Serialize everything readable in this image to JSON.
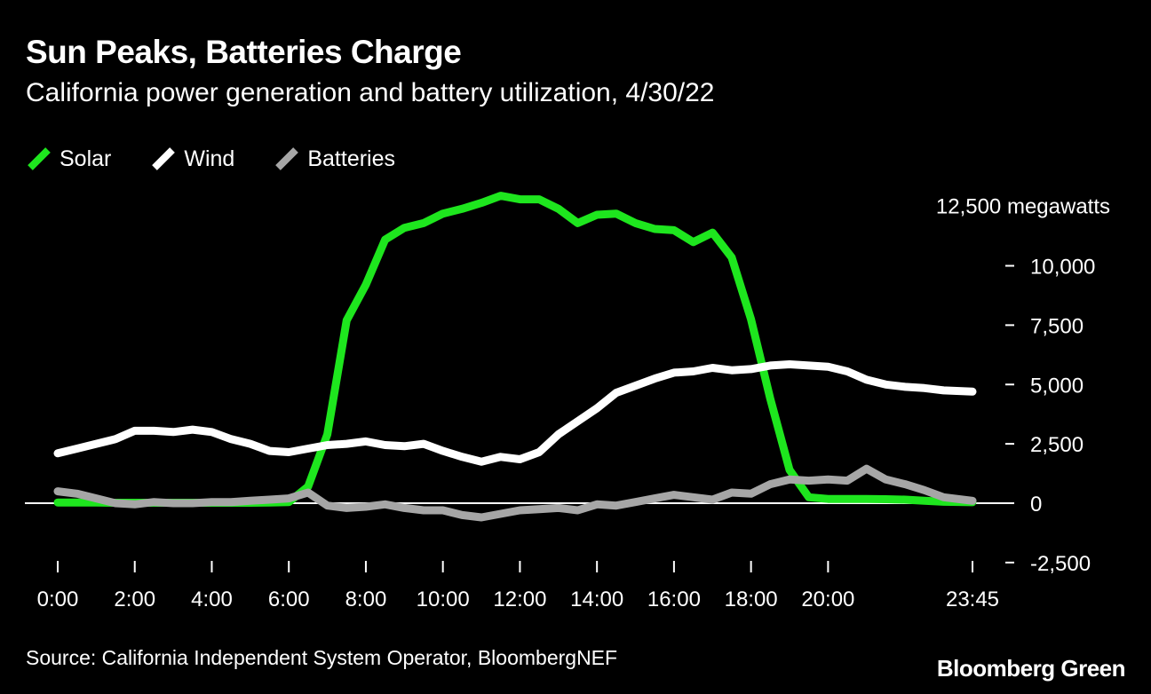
{
  "header": {
    "title": "Sun Peaks, Batteries Charge",
    "subtitle": "California power generation and battery utilization, 4/30/22"
  },
  "footer": {
    "source": "Source: California Independent System Operator, BloombergNEF",
    "brand": "Bloomberg Green"
  },
  "colors": {
    "background": "#000000",
    "solar": "#1ee61e",
    "wind": "#ffffff",
    "batteries": "#a6a6a6",
    "zero_line": "#ffffff"
  },
  "chart_data": {
    "type": "line",
    "title": "Sun Peaks, Batteries Charge",
    "subtitle": "California power generation and battery utilization, 4/30/22",
    "xlabel": "",
    "ylabel": "megawatts",
    "y_unit_label": "12,500 megawatts",
    "ylim": [
      -2500,
      12500
    ],
    "yticks": [
      -2500,
      0,
      2500,
      5000,
      7500,
      10000
    ],
    "ytick_labels": [
      "-2,500",
      "0",
      "2,500",
      "5,000",
      "7,500",
      "10,000"
    ],
    "xlim": [
      0,
      23.75
    ],
    "xticks": [
      0,
      2,
      4,
      6,
      8,
      10,
      12,
      14,
      16,
      18,
      20,
      23.75
    ],
    "xtick_labels": [
      "0:00",
      "2:00",
      "4:00",
      "6:00",
      "8:00",
      "10:00",
      "12:00",
      "14:00",
      "16:00",
      "18:00",
      "20:00",
      "23:45"
    ],
    "grid": false,
    "legend_position": "top-left",
    "x": [
      0,
      0.5,
      1,
      1.5,
      2,
      2.5,
      3,
      3.5,
      4,
      4.5,
      5,
      5.5,
      6,
      6.5,
      7,
      7.5,
      8,
      8.5,
      9,
      9.5,
      10,
      10.5,
      11,
      11.5,
      12,
      12.5,
      13,
      13.5,
      14,
      14.5,
      15,
      15.5,
      16,
      16.5,
      17,
      17.5,
      18,
      18.5,
      19,
      19.5,
      20,
      20.5,
      21,
      21.5,
      22,
      22.5,
      23,
      23.75
    ],
    "series": [
      {
        "name": "Solar",
        "color": "#1ee61e",
        "values": [
          30,
          30,
          30,
          20,
          20,
          20,
          20,
          20,
          20,
          20,
          20,
          30,
          50,
          700,
          2900,
          7700,
          9200,
          11100,
          11600,
          11800,
          12200,
          12400,
          12650,
          12950,
          12800,
          12800,
          12400,
          11800,
          12150,
          12200,
          11800,
          11550,
          11500,
          11000,
          11400,
          10350,
          7750,
          4400,
          1400,
          250,
          180,
          180,
          180,
          170,
          150,
          100,
          60,
          40
        ]
      },
      {
        "name": "Wind",
        "color": "#ffffff",
        "values": [
          2100,
          2300,
          2500,
          2700,
          3050,
          3050,
          3000,
          3100,
          3000,
          2700,
          2500,
          2200,
          2150,
          2300,
          2450,
          2500,
          2600,
          2450,
          2400,
          2500,
          2200,
          1950,
          1750,
          1950,
          1850,
          2150,
          2900,
          3450,
          4000,
          4650,
          4950,
          5250,
          5500,
          5550,
          5700,
          5600,
          5650,
          5800,
          5850,
          5800,
          5750,
          5550,
          5200,
          5000,
          4900,
          4850,
          4750,
          4700
        ]
      },
      {
        "name": "Batteries",
        "color": "#a6a6a6",
        "values": [
          500,
          400,
          200,
          0,
          -50,
          50,
          0,
          0,
          50,
          50,
          100,
          150,
          200,
          450,
          -100,
          -200,
          -150,
          -50,
          -200,
          -300,
          -300,
          -500,
          -600,
          -450,
          -300,
          -250,
          -200,
          -300,
          -50,
          -100,
          50,
          200,
          350,
          250,
          150,
          450,
          400,
          800,
          1000,
          950,
          1000,
          950,
          1450,
          1000,
          800,
          550,
          250,
          100
        ]
      }
    ]
  }
}
